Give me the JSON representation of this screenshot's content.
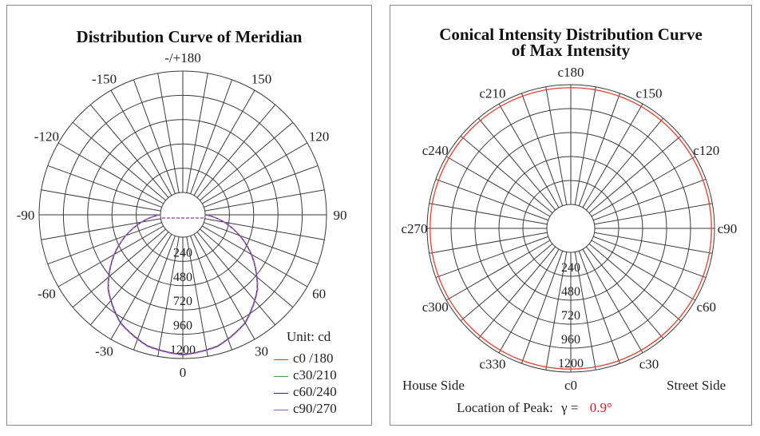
{
  "colors": {
    "grid": "#3a3a3a",
    "c0_180": "#e8412f",
    "c30_210": "#3fa33a",
    "c60_240": "#2b2f6e",
    "c90_270": "#a555c8",
    "peak_value": "#e0191f"
  },
  "chart_data": [
    {
      "type": "polar",
      "title": "Distribution Curve of  Meridian",
      "unit": "Unit: cd",
      "angle_tick_labels": [
        "-/+180",
        "150",
        "120",
        "90",
        "60",
        "30",
        "0",
        "-30",
        "-60",
        "-90",
        "-120",
        "-150"
      ],
      "radial_tick_labels": [
        "240",
        "480",
        "720",
        "960",
        "1200"
      ],
      "rlim": [
        0,
        1200
      ],
      "center_hole": true,
      "grid": true,
      "legend_position": "bottom-right",
      "series": [
        {
          "name": "c0 /180",
          "color_key": "c0_180",
          "points": [
            [
              -90,
              10
            ],
            [
              -60,
              560
            ],
            [
              -45,
              820
            ],
            [
              -30,
              1010
            ],
            [
              -15,
              1120
            ],
            [
              0,
              1160
            ],
            [
              15,
              1120
            ],
            [
              30,
              1010
            ],
            [
              45,
              820
            ],
            [
              60,
              560
            ],
            [
              90,
              10
            ]
          ]
        },
        {
          "name": "c30/210",
          "color_key": "c30_210",
          "points": [
            [
              -90,
              10
            ],
            [
              -60,
              560
            ],
            [
              -45,
              820
            ],
            [
              -30,
              1010
            ],
            [
              -15,
              1120
            ],
            [
              0,
              1160
            ],
            [
              15,
              1120
            ],
            [
              30,
              1010
            ],
            [
              45,
              820
            ],
            [
              60,
              560
            ],
            [
              90,
              10
            ]
          ]
        },
        {
          "name": "c60/240",
          "color_key": "c60_240",
          "points": [
            [
              -90,
              10
            ],
            [
              -60,
              562
            ],
            [
              -45,
              822
            ],
            [
              -30,
              1012
            ],
            [
              -15,
              1122
            ],
            [
              0,
              1162
            ],
            [
              15,
              1122
            ],
            [
              30,
              1012
            ],
            [
              45,
              822
            ],
            [
              60,
              562
            ],
            [
              90,
              10
            ]
          ]
        },
        {
          "name": "c90/270",
          "color_key": "c90_270",
          "points": [
            [
              -90,
              10
            ],
            [
              -60,
              565
            ],
            [
              -45,
              825
            ],
            [
              -30,
              1015
            ],
            [
              -15,
              1125
            ],
            [
              0,
              1165
            ],
            [
              15,
              1125
            ],
            [
              30,
              1015
            ],
            [
              45,
              825
            ],
            [
              60,
              565
            ],
            [
              90,
              10
            ]
          ]
        }
      ]
    },
    {
      "type": "polar",
      "title_lines": [
        "Conical Intensity Distribution Curve",
        "of  Max Intensity"
      ],
      "angle_tick_labels": [
        "c180",
        "c150",
        "c120",
        "c90",
        "c60",
        "c30",
        "c0",
        "c330",
        "c300",
        "c270",
        "c240",
        "c210"
      ],
      "radial_tick_labels": [
        "240",
        "480",
        "720",
        "960",
        "1200"
      ],
      "rlim": [
        0,
        1200
      ],
      "center_hole": true,
      "grid": true,
      "series": [
        {
          "name": "Max Intensity",
          "color_key": "c0_180",
          "constant_value": 1170
        }
      ],
      "footer": {
        "left": "House Side",
        "right": "Street Side",
        "peak_label": "Location of Peak:",
        "peak_symbol": "γ =",
        "peak_value": "0.9°"
      }
    }
  ]
}
